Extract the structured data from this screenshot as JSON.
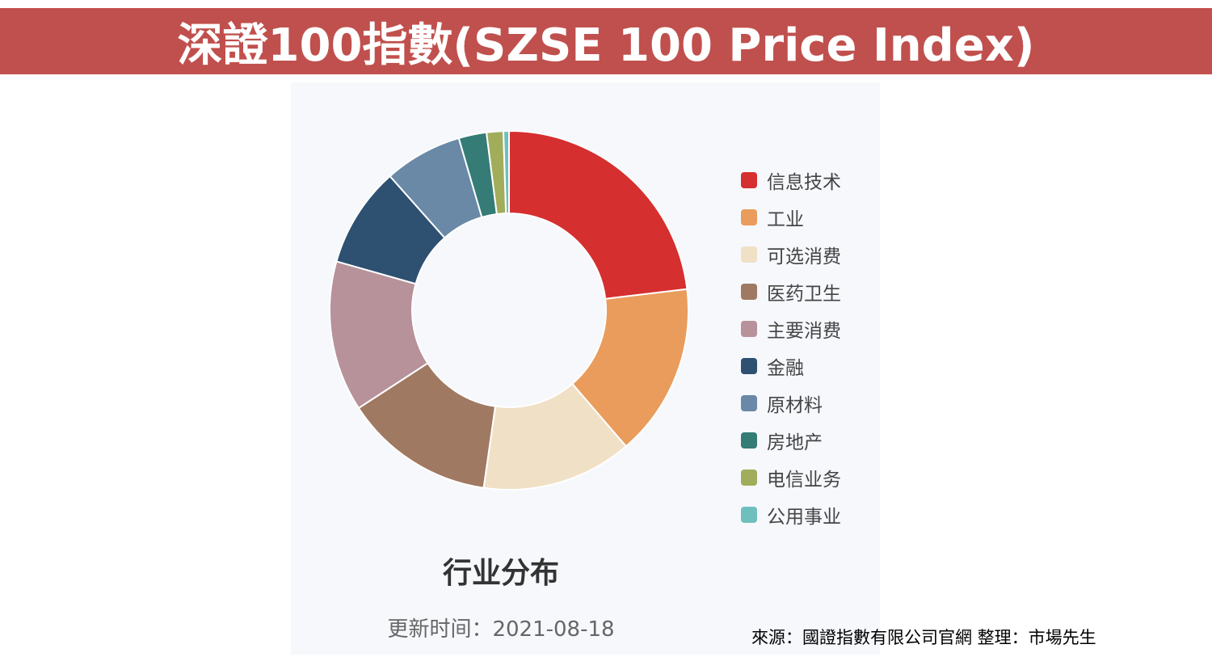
{
  "header": {
    "title": "深證100指數(SZSE 100 Price Index)"
  },
  "chart_data": {
    "type": "pie",
    "donut": true,
    "title": "行业分布",
    "subtitle": "更新时间：2021-08-18",
    "legend_position": "right",
    "categories": [
      "信息技术",
      "工业",
      "可选消费",
      "医药卫生",
      "主要消费",
      "金融",
      "原材料",
      "房地产",
      "电信业务",
      "公用事业"
    ],
    "values": [
      23.0,
      15.5,
      13.5,
      13.5,
      13.5,
      9.0,
      7.0,
      2.5,
      1.5,
      0.5
    ],
    "colors": [
      "#d62f2f",
      "#e99c5c",
      "#f0e0c6",
      "#a07962",
      "#b7929a",
      "#2e5071",
      "#6a89a7",
      "#347c75",
      "#a1ad5b",
      "#6fbfbe"
    ]
  },
  "footer": {
    "source": "來源：國證指數有限公司官網 整理：市場先生"
  }
}
